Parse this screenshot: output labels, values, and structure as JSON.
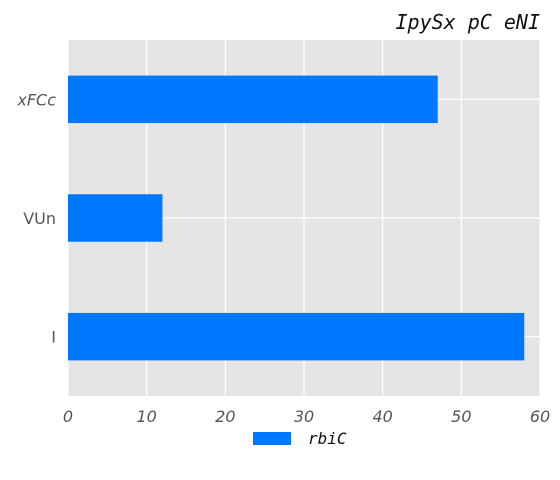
{
  "chart_data": {
    "type": "bar",
    "orientation": "horizontal",
    "title": "IpySx pC eNI",
    "categories": [
      "I",
      "VUn",
      "xFCc"
    ],
    "series": [
      {
        "name": "rbiC",
        "values": [
          58,
          12,
          47
        ]
      }
    ],
    "xlim": [
      0,
      60
    ],
    "xticks": [
      0,
      10,
      20,
      30,
      40,
      50,
      60
    ],
    "grid": true,
    "legend_position": "bottom",
    "colors": {
      "plot_background": "#e5e5e5",
      "grid": "#ffffff",
      "bar": "#0077ff"
    }
  }
}
